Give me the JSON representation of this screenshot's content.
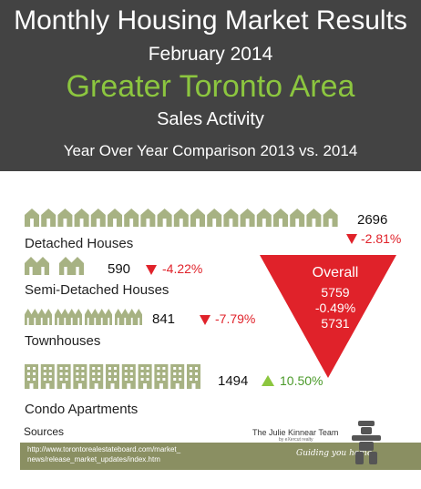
{
  "header": {
    "title": "Monthly Housing Market Results",
    "date": "February 2014",
    "area": "Greater Toronto Area",
    "subtitle": "Sales Activity",
    "comparison": "Year Over Year Comparison 2013 vs. 2014"
  },
  "chart_data": {
    "type": "table",
    "series": [
      {
        "name": "Detached Houses",
        "value_2014": 2696,
        "change_pct": "-2.81%",
        "direction": "down"
      },
      {
        "name": "Semi-Detached Houses",
        "value_2014": 590,
        "change_pct": "-4.22%",
        "direction": "down"
      },
      {
        "name": "Townhouses",
        "value_2014": 841,
        "change_pct": "-7.79%",
        "direction": "down"
      },
      {
        "name": "Condo Apartments",
        "value_2014": 1494,
        "change_pct": "10.50%",
        "direction": "up"
      }
    ],
    "overall": {
      "label": "Overall",
      "value_2013": 5759,
      "change_pct": "-0.49%",
      "value_2014": 5731
    }
  },
  "icons": {
    "detached": "house-icon",
    "semi": "semi-house-icon",
    "town": "townhouse-icon",
    "condo": "condo-building-icon"
  },
  "colors": {
    "header_bg": "#434343",
    "accent_green": "#8cc63f",
    "icon_green": "#a7b283",
    "down_red": "#e0222a",
    "footer": "#8a8f62"
  },
  "sources": {
    "label": "Sources",
    "url_line1": "http://www.torontorealestateboard.com/market_",
    "url_line2": "news/release_market_updates/index.htm"
  },
  "branding": {
    "team": "The Julie Kinnear Team",
    "team_sub": "by eXercut realty",
    "tagline": "Guiding you home"
  }
}
